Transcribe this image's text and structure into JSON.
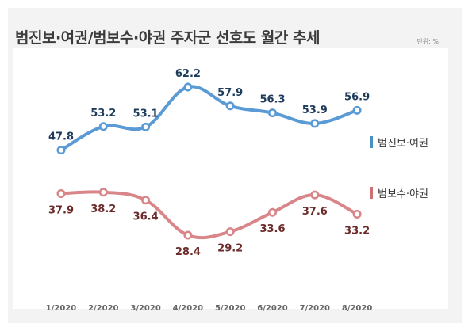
{
  "title": "범진보·여권/범보수·야권 주자군 선호도 월간 추세",
  "unit_label": "단위: %",
  "chart_data": {
    "type": "line",
    "categories": [
      "1/2020",
      "2/2020",
      "3/2020",
      "4/2020",
      "5/2020",
      "6/2020",
      "7/2020",
      "8/2020"
    ],
    "series": [
      {
        "name": "범진보·여권",
        "color": "#5b9bd5",
        "label_color": "#1f3b5c",
        "values": [
          47.8,
          53.2,
          53.1,
          62.2,
          57.9,
          56.3,
          53.9,
          56.9
        ]
      },
      {
        "name": "범보수·야권",
        "color": "#d9868a",
        "label_color": "#6b2b2b",
        "values": [
          37.9,
          38.2,
          36.4,
          28.4,
          29.2,
          33.6,
          37.6,
          33.2
        ]
      }
    ],
    "ylim": [
      22,
      68
    ],
    "grid": false,
    "legend_position": "right"
  }
}
